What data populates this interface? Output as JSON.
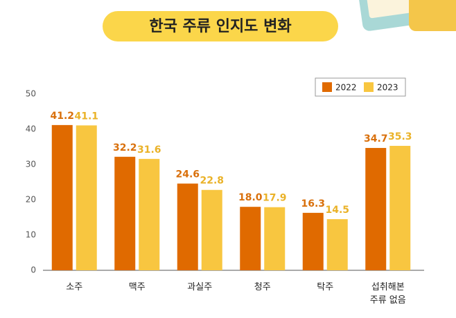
{
  "chart_data": {
    "type": "bar",
    "title": "한국 주류 인지도 변화",
    "categories": [
      "소주",
      "맥주",
      "과실주",
      "청주",
      "탁주",
      "섭취해본\n주류 없음"
    ],
    "series": [
      {
        "name": "2022",
        "color": "#e06a00",
        "values": [
          41.2,
          32.2,
          24.6,
          18.0,
          16.3,
          34.7
        ],
        "value_labels": [
          "41.2",
          "32.2",
          "24.6",
          "18.0",
          "16.3",
          "34.7"
        ]
      },
      {
        "name": "2023",
        "color": "#f8c640",
        "values": [
          41.1,
          31.6,
          22.8,
          17.9,
          14.5,
          35.3
        ],
        "value_labels": [
          "41.1",
          "31.6",
          "22.8",
          "17.9",
          "14.5",
          "35.3"
        ]
      }
    ],
    "ylim": [
      0,
      50
    ],
    "yticks": [
      0,
      10,
      20,
      30,
      40,
      50
    ],
    "grid": false,
    "legend": "top-right"
  }
}
